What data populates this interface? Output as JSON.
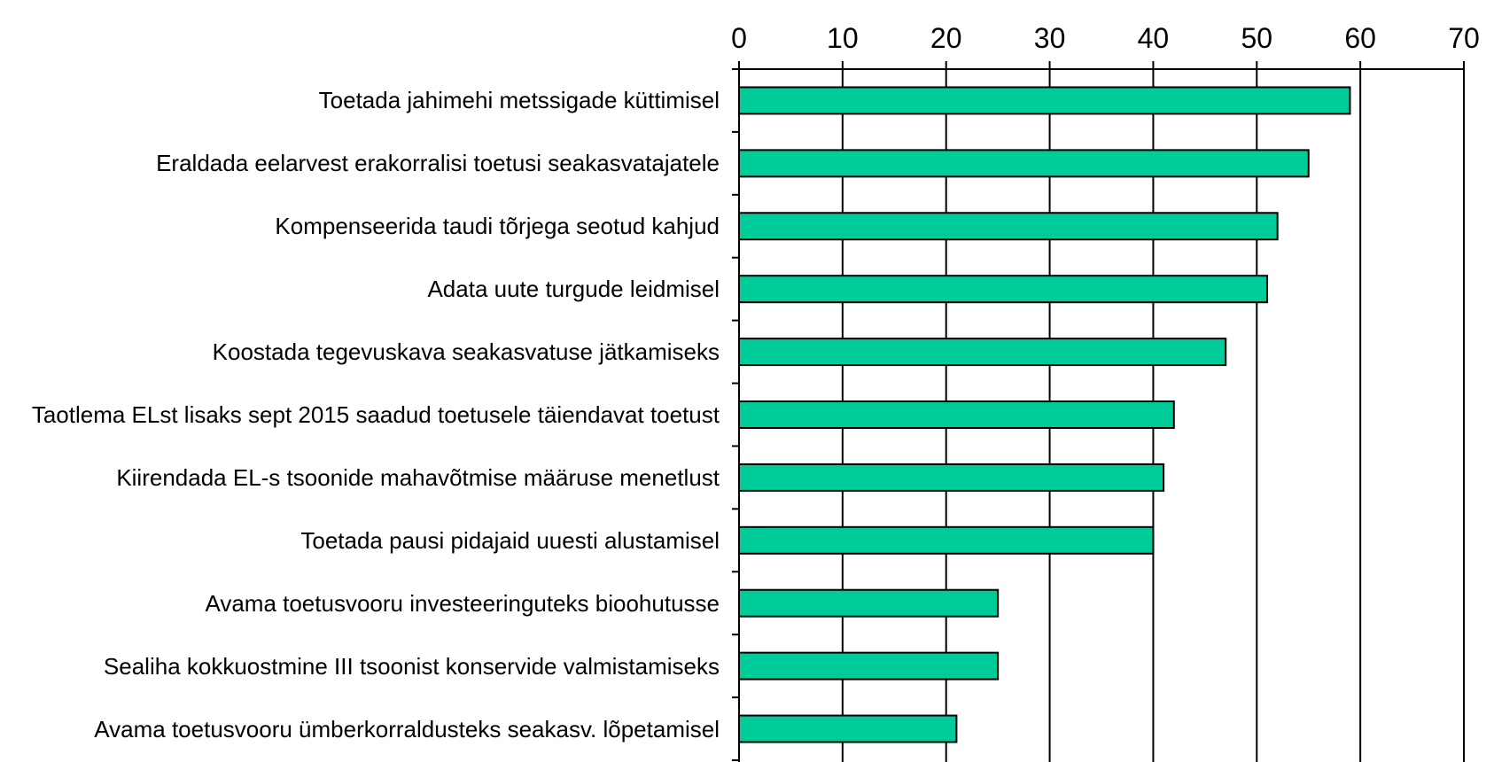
{
  "chart_data": {
    "type": "bar",
    "orientation": "horizontal",
    "categories": [
      "Toetada jahimehi metssigade küttimisel",
      "Eraldada eelarvest erakorralisi toetusi seakasvatajatele",
      "Kompenseerida taudi tõrjega seotud kahjud",
      "Adata uute turgude leidmisel",
      "Koostada tegevuskava seakasvatuse jätkamiseks",
      "Taotlema ELst lisaks sept 2015 saadud toetusele täiendavat toetust",
      "Kiirendada EL-s tsoonide mahavõtmise määruse menetlust",
      "Toetada pausi pidajaid uuesti alustamisel",
      "Avama toetusvooru investeeringuteks bioohutusse",
      "Sealiha kokkuostmine III tsoonist konservide valmistamiseks",
      "Avama toetusvooru ümberkorraldusteks seakasv. lõpetamisel"
    ],
    "values": [
      59,
      55,
      52,
      51,
      47,
      42,
      41,
      40,
      25,
      25,
      21
    ],
    "color": "#00cc99",
    "xlim": [
      0,
      70
    ],
    "xticks": [
      0,
      10,
      20,
      30,
      40,
      50,
      60,
      70
    ],
    "grid": true
  }
}
